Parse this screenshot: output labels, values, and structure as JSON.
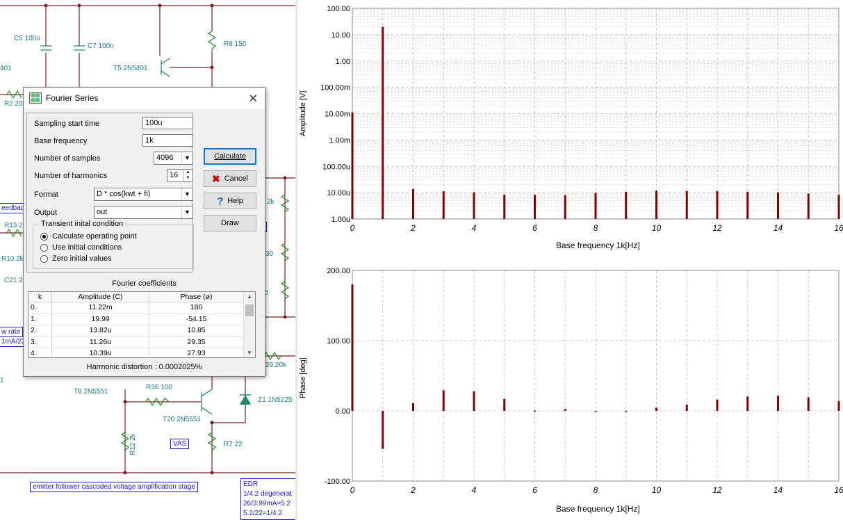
{
  "schematic": {
    "labels": {
      "c5": "C5 100u",
      "c7": "C7 100n",
      "r8": "R8 150",
      "t5": "T5 2N5401",
      "n401": "401",
      "r2": "R2 20",
      "r13": "R13 2",
      "r10": "R10 2k",
      "c21": "C21 2",
      "k2": "2k",
      "n30": "30",
      "n0": "0",
      "n1": "1",
      "r29": "29.20k",
      "t8": "T8 2N5551",
      "r36": "R36 100",
      "t20": "T20 2N5551",
      "z1": "Z1 1N5225",
      "r12": "R12 2k",
      "r7": "R7 22"
    },
    "boxes": {
      "feedback": "eedbac",
      "wrate": "w rate",
      "ma": "1mA/22",
      "r_box": "r",
      "vas": "VAS",
      "emitter": "emitter follower cascoded voltage amplification stage"
    },
    "edr_lines": [
      "EDR",
      "1/4.2 degenerat",
      "26/3.99mA=5.2",
      "5.2/22=1/4.2"
    ]
  },
  "dialog": {
    "title": "Fourier Series",
    "close": "✕",
    "sampling_start_label": "Sampling start time",
    "sampling_start_value": "100u",
    "base_frequency_label": "Base frequency",
    "base_frequency_value": "1k",
    "num_samples_label": "Number of samples",
    "num_samples_value": "4096",
    "num_harmonics_label": "Number of harmonics",
    "num_harmonics_value": "16",
    "format_label": "Format",
    "format_value": "D * cos(kwt + fi)",
    "output_label": "Output",
    "output_value": "out",
    "transient_title": "Transient inital condition",
    "radio_options": [
      "Calculate operating point",
      "Use initial conditions",
      "Zero initial values"
    ],
    "selected_radio": 0,
    "buttons": {
      "calculate": "Calculate",
      "cancel": "Cancel",
      "help": "Help",
      "draw": "Draw"
    },
    "coef_title": "Fourier coefficients",
    "table_headers": [
      "k",
      "Amplitude (C)",
      "Phase (ø)"
    ],
    "table_rows": [
      [
        "0.",
        "11.22m",
        "180"
      ],
      [
        "1.",
        "19.99",
        "-54.15"
      ],
      [
        "2.",
        "13.82u",
        "10.85"
      ],
      [
        "3.",
        "11.26u",
        "29.35"
      ],
      [
        "4.",
        "10.39u",
        "27.93"
      ]
    ],
    "distortion_label": "Harmonic distortion :",
    "distortion_value": "0.0002025%"
  },
  "colors": {
    "bar": "#7f0000",
    "grid": "#c8c8c8",
    "schematic_wire": "#7a1f1f",
    "component": "#1a7a8a"
  },
  "chart_data": [
    {
      "type": "bar",
      "title": "",
      "xlabel": "Base frequency 1k[Hz]",
      "ylabel": "Amplitude [V]",
      "yscale": "log",
      "ylim": [
        1e-06,
        100
      ],
      "xlim": [
        0,
        16
      ],
      "x": [
        0,
        1,
        2,
        3,
        4,
        5,
        6,
        7,
        8,
        9,
        10,
        11,
        12,
        13,
        14,
        15,
        16
      ],
      "values": [
        0.01122,
        19.99,
        1.382e-05,
        1.126e-05,
        1.039e-05,
        8.4e-06,
        8.2e-06,
        8.1e-06,
        9.8e-06,
        1.08e-05,
        1.18e-05,
        1.15e-05,
        1.14e-05,
        1.08e-05,
        1.02e-05,
        9.3e-06,
        8.3e-06
      ],
      "y_tick_labels": [
        "100.00",
        "10.00",
        "1.00",
        "100.00m",
        "10.00m",
        "1.00m",
        "100.00u",
        "10.00u",
        "1.00u"
      ],
      "x_tick_labels": [
        "0",
        "2",
        "4",
        "6",
        "8",
        "10",
        "12",
        "14",
        "16"
      ]
    },
    {
      "type": "bar",
      "title": "",
      "xlabel": "Base frequency 1k[Hz]",
      "ylabel": "Phase [deg]",
      "ylim": [
        -100,
        200
      ],
      "xlim": [
        0,
        16
      ],
      "x": [
        0,
        1,
        2,
        3,
        4,
        5,
        6,
        7,
        8,
        9,
        10,
        11,
        12,
        13,
        14,
        15,
        16
      ],
      "values": [
        180,
        -54.15,
        10.85,
        29.35,
        27.93,
        17,
        0.5,
        2.5,
        -1.5,
        -0.5,
        4.5,
        9,
        16,
        20.5,
        21.5,
        19.5,
        14
      ],
      "y_tick_labels": [
        "200.00",
        "100.00",
        "0.00",
        "-100.00"
      ],
      "x_tick_labels": [
        "0",
        "2",
        "4",
        "6",
        "8",
        "10",
        "12",
        "14",
        "16"
      ]
    }
  ]
}
